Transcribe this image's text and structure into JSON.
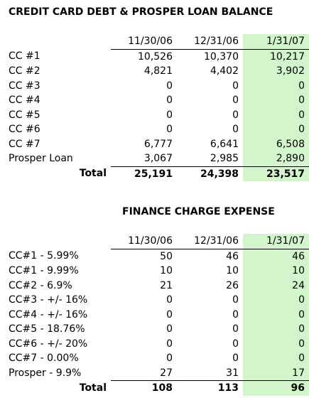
{
  "tables": [
    {
      "title": "CREDIT CARD DEBT & PROSPER LOAN BALANCE",
      "columns": [
        "11/30/06",
        "12/31/06",
        "1/31/07"
      ],
      "rows": [
        {
          "label": "CC #1",
          "values": [
            "10,526",
            "10,370",
            "10,217"
          ]
        },
        {
          "label": "CC #2",
          "values": [
            "4,821",
            "4,402",
            "3,902"
          ]
        },
        {
          "label": "CC #3",
          "values": [
            "0",
            "0",
            "0"
          ]
        },
        {
          "label": "CC #4",
          "values": [
            "0",
            "0",
            "0"
          ]
        },
        {
          "label": "CC #5",
          "values": [
            "0",
            "0",
            "0"
          ]
        },
        {
          "label": "CC #6",
          "values": [
            "0",
            "0",
            "0"
          ]
        },
        {
          "label": "CC #7",
          "values": [
            "6,777",
            "6,641",
            "6,508"
          ]
        },
        {
          "label": "Prosper Loan",
          "values": [
            "3,067",
            "2,985",
            "2,890"
          ]
        }
      ],
      "total": {
        "label": "Total",
        "values": [
          "25,191",
          "24,398",
          "23,517"
        ]
      }
    },
    {
      "title": "FINANCE CHARGE EXPENSE",
      "columns": [
        "11/30/06",
        "12/31/06",
        "1/31/07"
      ],
      "rows": [
        {
          "label": "CC#1 - 5.99%",
          "values": [
            "50",
            "46",
            "46"
          ]
        },
        {
          "label": "CC#1 - 9.99%",
          "values": [
            "10",
            "10",
            "10"
          ]
        },
        {
          "label": "CC#2 - 6.9%",
          "values": [
            "21",
            "26",
            "24"
          ]
        },
        {
          "label": "CC#3 - +/- 16%",
          "values": [
            "0",
            "0",
            "0"
          ]
        },
        {
          "label": "CC#4 - +/- 16%",
          "values": [
            "0",
            "0",
            "0"
          ]
        },
        {
          "label": "CC#5 - 18.76%",
          "values": [
            "0",
            "0",
            "0"
          ]
        },
        {
          "label": "CC#6 - +/- 20%",
          "values": [
            "0",
            "0",
            "0"
          ]
        },
        {
          "label": "CC#7 - 0.00%",
          "values": [
            "0",
            "0",
            "0"
          ]
        },
        {
          "label": "Prosper - 9.9%",
          "values": [
            "27",
            "31",
            "17"
          ]
        }
      ],
      "total": {
        "label": "Total",
        "values": [
          "108",
          "113",
          "96"
        ]
      }
    }
  ]
}
